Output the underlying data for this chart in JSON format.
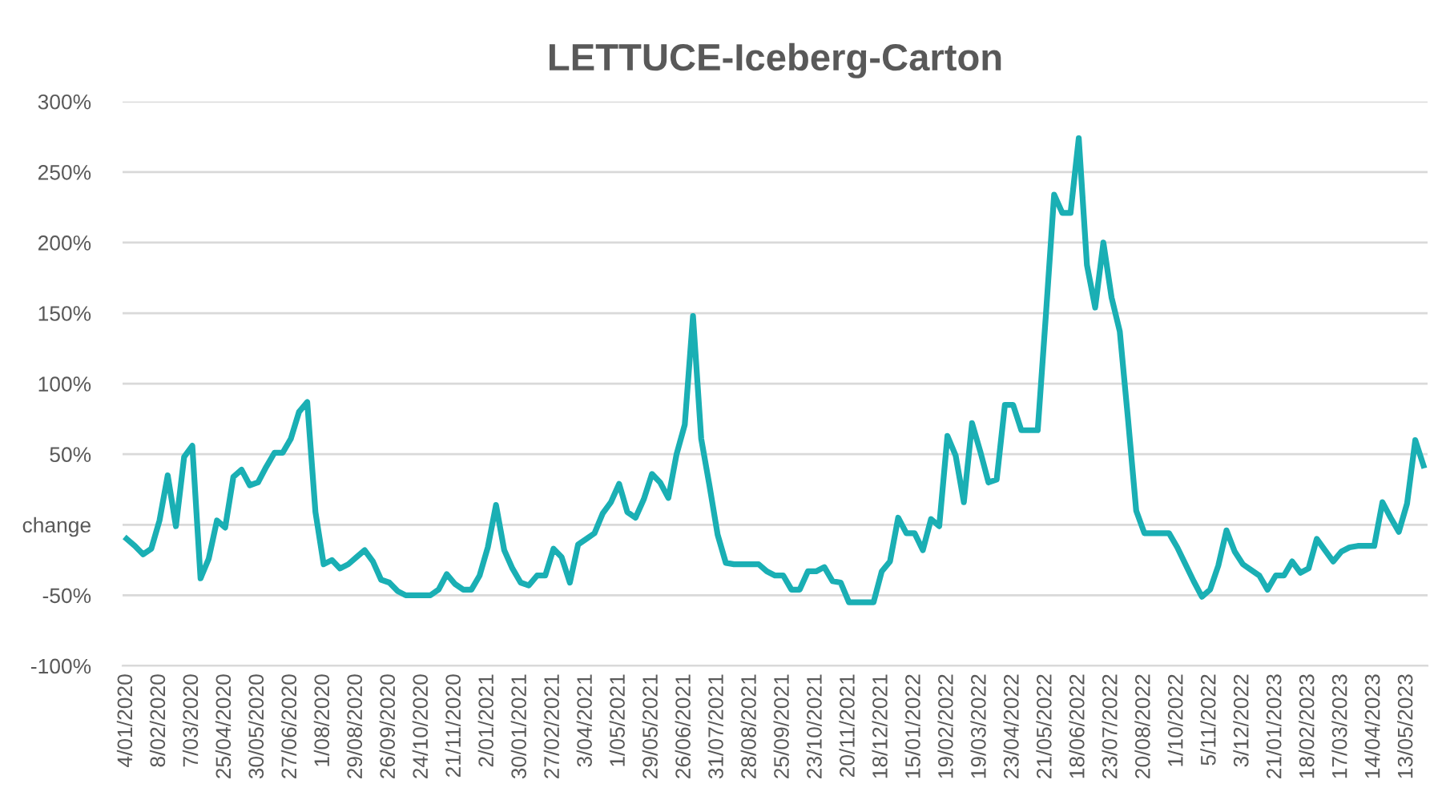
{
  "chart_data": {
    "type": "line",
    "title": "LETTUCE-Iceberg-Carton",
    "categories": [
      "4/01/2020",
      null,
      null,
      null,
      "8/02/2020",
      null,
      null,
      null,
      "7/03/2020",
      null,
      null,
      null,
      "25/04/2020",
      null,
      null,
      null,
      "30/05/2020",
      null,
      null,
      null,
      "27/06/2020",
      null,
      null,
      null,
      "1/08/2020",
      null,
      null,
      null,
      "29/08/2020",
      null,
      null,
      null,
      "26/09/2020",
      null,
      null,
      null,
      "24/10/2020",
      null,
      null,
      null,
      "21/11/2020",
      null,
      null,
      null,
      "2/01/2021",
      null,
      null,
      null,
      "30/01/2021",
      null,
      null,
      null,
      "27/02/2021",
      null,
      null,
      null,
      "3/04/2021",
      null,
      null,
      null,
      "1/05/2021",
      null,
      null,
      null,
      "29/05/2021",
      null,
      null,
      null,
      "26/06/2021",
      null,
      null,
      null,
      "31/07/2021",
      null,
      null,
      null,
      "28/08/2021",
      null,
      null,
      null,
      "25/09/2021",
      null,
      null,
      null,
      "23/10/2021",
      null,
      null,
      null,
      "20/11/2021",
      null,
      null,
      null,
      "18/12/2021",
      null,
      null,
      null,
      "15/01/2022",
      null,
      null,
      null,
      "19/02/2022",
      null,
      null,
      null,
      "19/03/2022",
      null,
      null,
      null,
      "23/04/2022",
      null,
      null,
      null,
      "21/05/2022",
      null,
      null,
      null,
      "18/06/2022",
      null,
      null,
      null,
      "23/07/2022",
      null,
      null,
      null,
      "20/08/2022",
      null,
      null,
      null,
      "1/10/2022",
      null,
      null,
      null,
      "5/11/2022",
      null,
      null,
      null,
      "3/12/2022",
      null,
      null,
      null,
      "21/01/2023",
      null,
      null,
      null,
      "18/02/2023",
      null,
      null,
      null,
      "17/03/2023",
      null,
      null,
      null,
      "14/04/2023",
      null,
      null,
      null,
      "13/05/2023",
      null,
      null
    ],
    "series": [
      {
        "color": "#1aafb4",
        "values": [
          -10,
          -15,
          -21,
          -17,
          3,
          35,
          -1,
          48,
          56,
          -38,
          -24,
          3,
          -2,
          34,
          39,
          28,
          30,
          41,
          51,
          51,
          61,
          80,
          87,
          9,
          -28,
          -25,
          -31,
          -28,
          -23,
          -18,
          -26,
          -39,
          -41,
          -47,
          -50,
          -50,
          -50,
          -50,
          -46,
          -35,
          -42,
          -46,
          -46,
          -36,
          -16,
          14,
          -18,
          -31,
          -41,
          -43,
          -36,
          -36,
          -17,
          -23,
          -41,
          -14,
          -10,
          -6,
          8,
          16,
          29,
          9,
          5,
          18,
          36,
          30,
          19,
          50,
          71,
          148,
          61,
          28,
          -7,
          -27,
          -28,
          -28,
          -28,
          -28,
          -33,
          -36,
          -36,
          -46,
          -46,
          -33,
          -33,
          -30,
          -40,
          -41,
          -55,
          -55,
          -55,
          -55,
          -33,
          -26,
          5,
          -6,
          -6,
          -18,
          4,
          -1,
          63,
          49,
          16,
          72,
          52,
          30,
          32,
          85,
          85,
          67,
          67,
          67,
          149,
          234,
          221,
          221,
          274,
          184,
          154,
          200,
          161,
          137,
          75,
          10,
          -6,
          -6,
          -6,
          -6,
          -16,
          -28,
          -40,
          -51,
          -46,
          -29,
          -4,
          -19,
          -28,
          -32,
          -36,
          -46,
          -36,
          -36,
          -26,
          -34,
          -31,
          -10,
          -18,
          -26,
          -19,
          -16,
          -15,
          -15,
          -15,
          16,
          5,
          -5,
          15,
          60,
          42
        ]
      }
    ],
    "ylim": [
      -100,
      300
    ],
    "yticks": [
      {
        "value": -100,
        "label": "-100%"
      },
      {
        "value": -50,
        "label": "-50%"
      },
      {
        "value": 0,
        "label": "change"
      },
      {
        "value": 50,
        "label": "50%"
      },
      {
        "value": 100,
        "label": "100%"
      },
      {
        "value": 150,
        "label": "150%"
      },
      {
        "value": 200,
        "label": "200%"
      },
      {
        "value": 250,
        "label": "250%"
      },
      {
        "value": 300,
        "label": "300%"
      }
    ],
    "grid": "y",
    "marker": "none",
    "line_style": "solid"
  }
}
